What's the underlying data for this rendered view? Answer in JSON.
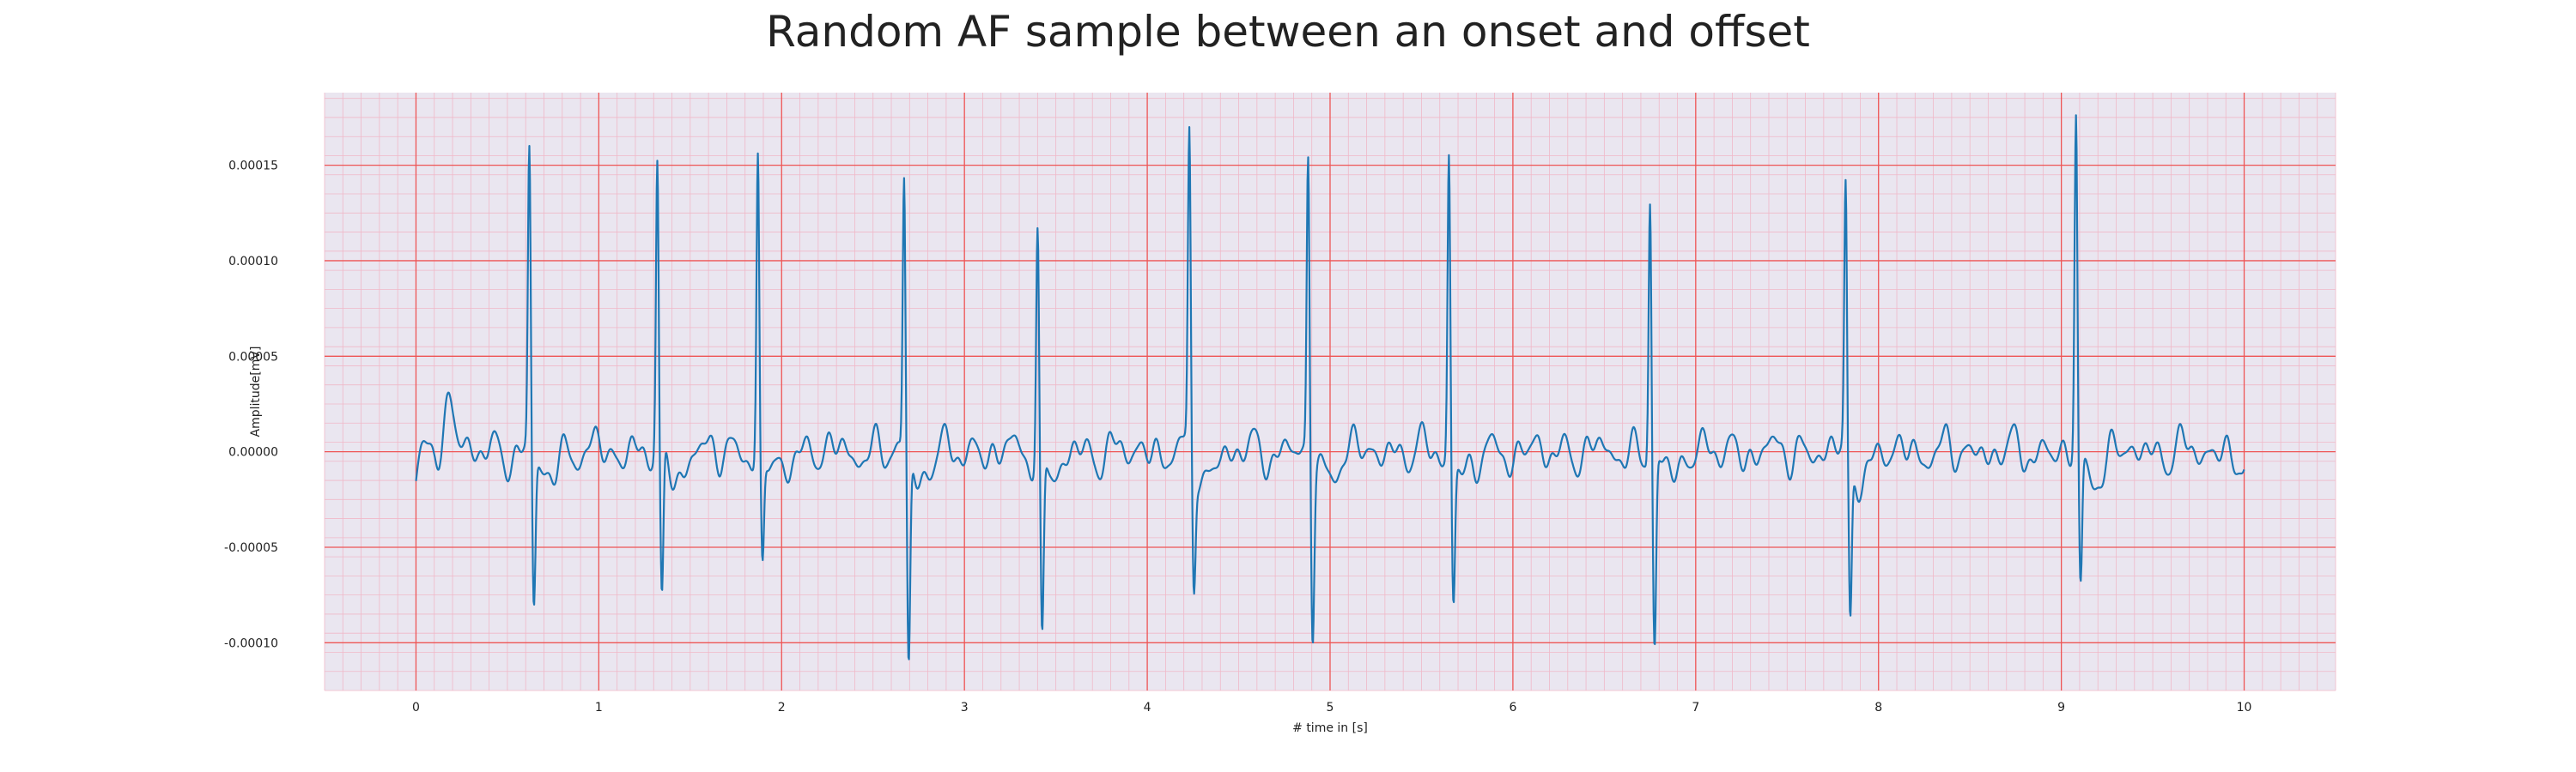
{
  "chart_data": {
    "type": "line",
    "title": "Random AF sample between an onset and offset",
    "xlabel": "# time in [s]",
    "ylabel": "Amplitude[mV]",
    "xlim": [
      -0.5,
      10.5
    ],
    "ylim": [
      -0.000125,
      0.000188
    ],
    "x_ticks": [
      0,
      1,
      2,
      3,
      4,
      5,
      6,
      7,
      8,
      9,
      10
    ],
    "y_ticks": [
      -0.0001,
      -5e-05,
      0.0,
      5e-05,
      0.0001,
      0.00015
    ],
    "x_tick_labels": [
      "0",
      "1",
      "2",
      "3",
      "4",
      "5",
      "6",
      "7",
      "8",
      "9",
      "10"
    ],
    "y_tick_labels": [
      "-0.00010",
      "-0.00005",
      "0.00000",
      "0.00005",
      "0.00010",
      "0.00015"
    ],
    "grid": "on",
    "colors": {
      "line": "#1f77b4",
      "background": "#eae6f0",
      "major_grid": "#ee5555",
      "minor_grid": "#f0b8c8"
    },
    "series": [
      {
        "sample_rate_hz": 300,
        "x_start": 0,
        "x_end": 10,
        "beats": [
          {
            "t": 0.62,
            "r": 0.000157,
            "s": -7.8e-05
          },
          {
            "t": 1.32,
            "r": 0.000152,
            "s": -8.1e-05
          },
          {
            "t": 1.87,
            "r": 0.000156,
            "s": -5.8e-05
          },
          {
            "t": 2.67,
            "r": 0.000145,
            "s": -0.00011
          },
          {
            "t": 3.4,
            "r": 0.000118,
            "s": -9.9e-05
          },
          {
            "t": 4.23,
            "r": 0.000163,
            "s": -6.4e-05
          },
          {
            "t": 4.88,
            "r": 0.000157,
            "s": -8.8e-05
          },
          {
            "t": 5.65,
            "r": 0.00016,
            "s": -7.4e-05
          },
          {
            "t": 6.75,
            "r": 0.000138,
            "s": -0.000101
          },
          {
            "t": 7.82,
            "r": 0.000138,
            "s": -8.4e-05
          },
          {
            "t": 9.08,
            "r": 0.000174,
            "s": -7.2e-05
          }
        ],
        "baseline_start": -1.7e-05,
        "baseline_end": -8e-06
      }
    ]
  }
}
